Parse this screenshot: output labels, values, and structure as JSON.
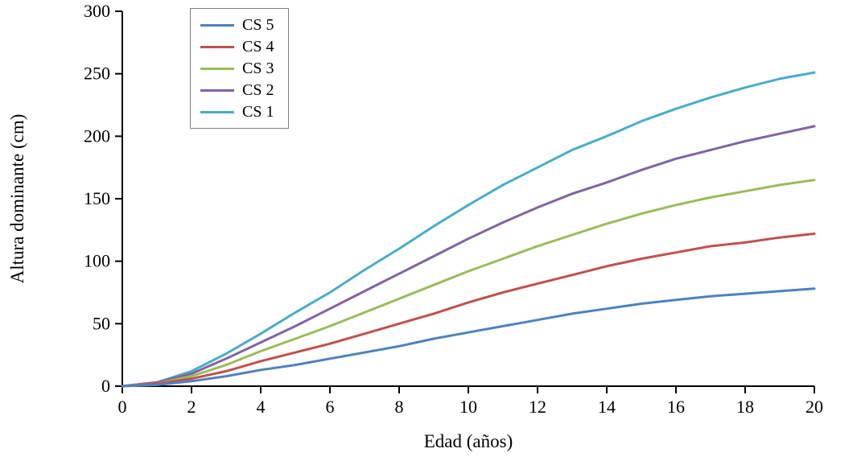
{
  "chart_data": {
    "type": "line",
    "title": "",
    "xlabel": "Edad (años)",
    "ylabel": "Altura dominante (cm)",
    "xlim": [
      0,
      20
    ],
    "ylim": [
      0,
      300
    ],
    "xticks": [
      0,
      2,
      4,
      6,
      8,
      10,
      12,
      14,
      16,
      18,
      20
    ],
    "yticks": [
      0,
      50,
      100,
      150,
      200,
      250,
      300
    ],
    "grid": false,
    "legend_position": "top-left-inside",
    "legend_order": [
      "CS 5",
      "CS 4",
      "CS 3",
      "CS 2",
      "CS 1"
    ],
    "x": [
      0,
      1,
      2,
      3,
      4,
      5,
      6,
      7,
      8,
      9,
      10,
      11,
      12,
      13,
      14,
      15,
      16,
      17,
      18,
      19,
      20
    ],
    "series": [
      {
        "name": "CS 1",
        "color": "#4BACC6",
        "values": [
          0,
          3,
          12,
          26,
          42,
          59,
          75,
          93,
          110,
          128,
          145,
          161,
          175,
          189,
          200,
          212,
          222,
          231,
          239,
          246,
          251
        ]
      },
      {
        "name": "CS 2",
        "color": "#8064A2",
        "values": [
          0,
          3,
          10,
          22,
          35,
          48,
          62,
          76,
          90,
          104,
          118,
          131,
          143,
          154,
          163,
          173,
          182,
          189,
          196,
          202,
          208
        ]
      },
      {
        "name": "CS 3",
        "color": "#9BBB59",
        "values": [
          0,
          2,
          8,
          17,
          28,
          38,
          48,
          59,
          70,
          81,
          92,
          102,
          112,
          121,
          130,
          138,
          145,
          151,
          156,
          161,
          165
        ]
      },
      {
        "name": "CS 4",
        "color": "#C0504D",
        "values": [
          0,
          2,
          6,
          12,
          20,
          27,
          34,
          42,
          50,
          58,
          67,
          75,
          82,
          89,
          96,
          102,
          107,
          112,
          115,
          119,
          122
        ]
      },
      {
        "name": "CS 5",
        "color": "#4F81BD",
        "values": [
          0,
          1,
          4,
          8,
          13,
          17,
          22,
          27,
          32,
          38,
          43,
          48,
          53,
          58,
          62,
          66,
          69,
          72,
          74,
          76,
          78
        ]
      }
    ]
  }
}
